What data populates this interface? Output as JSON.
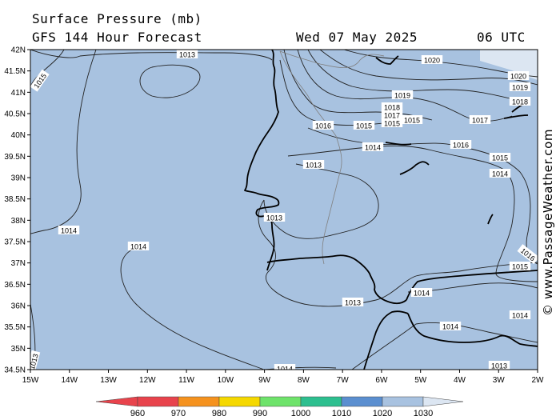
{
  "header": {
    "title": "Surface Pressure (mb)",
    "subtitle": "GFS 144 Hour Forecast",
    "date": "Wed 07 May 2025",
    "time": "06 UTC"
  },
  "watermark": "© www.PassageWeather.com",
  "map": {
    "background_color": "#a8c2e0",
    "coast_color": "#000000",
    "latitude_labels": [
      "42N",
      "41.5N",
      "41N",
      "40.5N",
      "40N",
      "39.5N",
      "39N",
      "38.5N",
      "38N",
      "37.5N",
      "37N",
      "36.5N",
      "36N",
      "35.5N",
      "35N",
      "34.5N"
    ],
    "longitude_labels": [
      "15W",
      "14W",
      "13W",
      "12W",
      "11W",
      "10W",
      "9W",
      "8W",
      "7W",
      "6W",
      "5W",
      "4W",
      "3W",
      "2W"
    ],
    "isobar_labels": [
      {
        "id": "nw-1013",
        "text": "1013"
      },
      {
        "id": "nw-1015",
        "text": "1015"
      },
      {
        "id": "n-1020",
        "text": "1020"
      },
      {
        "id": "ne-1020",
        "text": "1020"
      },
      {
        "id": "ne-1019a",
        "text": "1019"
      },
      {
        "id": "ne-1019b",
        "text": "1019"
      },
      {
        "id": "ne-1018a",
        "text": "1018"
      },
      {
        "id": "c-1018",
        "text": "1018"
      },
      {
        "id": "c-1017a",
        "text": "1017"
      },
      {
        "id": "e-1017",
        "text": "1017"
      },
      {
        "id": "c-1015a",
        "text": "1015"
      },
      {
        "id": "c-1015b",
        "text": "1015"
      },
      {
        "id": "c-1015c",
        "text": "1015"
      },
      {
        "id": "c-1016a",
        "text": "1016"
      },
      {
        "id": "e-1016",
        "text": "1016"
      },
      {
        "id": "c-1014a",
        "text": "1014"
      },
      {
        "id": "e-1015",
        "text": "1015"
      },
      {
        "id": "e-1014",
        "text": "1014"
      },
      {
        "id": "c-1013a",
        "text": "1013"
      },
      {
        "id": "c-1013b",
        "text": "1013"
      },
      {
        "id": "w-1014",
        "text": "1014"
      },
      {
        "id": "sw-1014",
        "text": "1014"
      },
      {
        "id": "se-1016",
        "text": "1016"
      },
      {
        "id": "se-1015",
        "text": "1015"
      },
      {
        "id": "s-1013",
        "text": "1013"
      },
      {
        "id": "s-1014a",
        "text": "1014"
      },
      {
        "id": "se-1014",
        "text": "1014"
      },
      {
        "id": "s-1014b",
        "text": "1014"
      },
      {
        "id": "bottom-1014",
        "text": "1014"
      },
      {
        "id": "se-1013",
        "text": "1013"
      },
      {
        "id": "sw-1013",
        "text": "1013"
      }
    ]
  },
  "legend": {
    "colors": [
      "#e8434c",
      "#f5921e",
      "#f5d800",
      "#6ee36a",
      "#2dbf8f",
      "#5b8fd0",
      "#a8c2e0",
      "#dce6f2"
    ],
    "labels": [
      "960",
      "970",
      "980",
      "990",
      "1000",
      "1010",
      "1020",
      "1030"
    ]
  }
}
